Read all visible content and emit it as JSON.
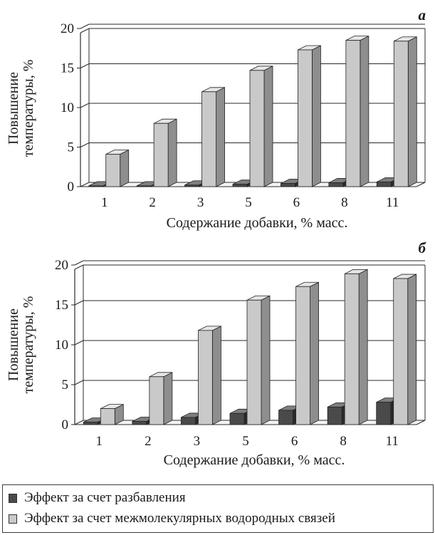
{
  "colors": {
    "dilution_front": "#4a4a4a",
    "dilution_top": "#7e7e7e",
    "dilution_side": "#2a2a2a",
    "hbond_front": "#c9c9c9",
    "hbond_top": "#e6e6e6",
    "hbond_side": "#8e8e8e",
    "axis": "#2a2a2a",
    "grid": "#2a2a2a"
  },
  "chart_data": [
    {
      "type": "bar",
      "panel_label": "а",
      "categories": [
        "1",
        "2",
        "3",
        "5",
        "6",
        "8",
        "11"
      ],
      "series": [
        {
          "name": "Эффект за счет разбавления",
          "values": [
            0.1,
            0.1,
            0.2,
            0.3,
            0.4,
            0.5,
            0.6
          ]
        },
        {
          "name": "Эффект за счет межмолекулярных водородных связей",
          "values": [
            4.1,
            8.0,
            12.0,
            14.7,
            17.3,
            18.5,
            18.4
          ]
        }
      ],
      "ylim": [
        0,
        20
      ],
      "yticks": [
        "0",
        "5",
        "10",
        "15",
        "20"
      ],
      "ylabel_line1": "Повышение",
      "ylabel_line2": "температуры, %",
      "xlabel": "Содержание добавки, % масс.",
      "grid": true
    },
    {
      "type": "bar",
      "panel_label": "б",
      "categories": [
        "1",
        "2",
        "3",
        "5",
        "6",
        "8",
        "11"
      ],
      "series": [
        {
          "name": "Эффект за счет разбавления",
          "values": [
            0.3,
            0.4,
            0.9,
            1.4,
            1.8,
            2.2,
            2.8
          ]
        },
        {
          "name": "Эффект за счет межмолекулярных водородных связей",
          "values": [
            2.0,
            6.0,
            11.8,
            15.6,
            17.3,
            18.9,
            18.3
          ]
        }
      ],
      "ylim": [
        0,
        20
      ],
      "yticks": [
        "0",
        "5",
        "10",
        "15",
        "20"
      ],
      "ylabel_line1": "Повышение",
      "ylabel_line2": "температуры, %",
      "xlabel": "Содержание добавки, % масс.",
      "grid": true
    }
  ],
  "legend": {
    "items": [
      {
        "label": "Эффект за счет разбавления",
        "color": "#4a4a4a"
      },
      {
        "label": "Эффект за счет межмолекулярных водородных связей",
        "color": "#c9c9c9"
      }
    ]
  }
}
